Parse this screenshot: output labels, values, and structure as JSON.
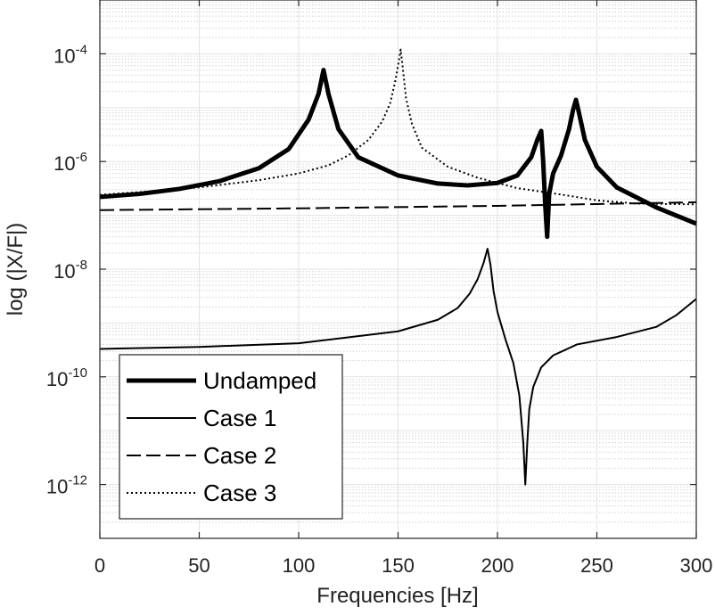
{
  "chart_data": {
    "type": "line",
    "xlabel": "Frequencies [Hz]",
    "ylabel": "log (|X/F|)",
    "xlim": [
      0,
      300
    ],
    "ylim_log10": [
      -13,
      -3
    ],
    "yscale": "log",
    "grid": true,
    "minor_grid": true,
    "legend_position": "bottom-left",
    "xticks": [
      {
        "value": 0,
        "label": "0"
      },
      {
        "value": 50,
        "label": "50"
      },
      {
        "value": 100,
        "label": "100"
      },
      {
        "value": 150,
        "label": "150"
      },
      {
        "value": 200,
        "label": "200"
      },
      {
        "value": 250,
        "label": "250"
      },
      {
        "value": 300,
        "label": "300"
      }
    ],
    "yticks": [
      {
        "exp": -4,
        "base": "10",
        "sup": "-4"
      },
      {
        "exp": -6,
        "base": "10",
        "sup": "-6"
      },
      {
        "exp": -8,
        "base": "10",
        "sup": "-8"
      },
      {
        "exp": -10,
        "base": "10",
        "sup": "-10"
      },
      {
        "exp": -12,
        "base": "10",
        "sup": "-12"
      }
    ],
    "series": [
      {
        "name": "Undamped",
        "style": "thick-solid",
        "x": [
          0,
          20,
          40,
          60,
          80,
          95,
          105,
          110,
          112.5,
          115,
          120,
          130,
          150,
          170,
          185,
          200,
          210,
          217,
          220,
          222,
          223,
          224,
          225,
          226,
          228,
          232,
          236,
          238,
          239.5,
          241,
          244,
          250,
          260,
          280,
          300
        ],
        "y": [
          2.2e-07,
          2.5e-07,
          3.1e-07,
          4.3e-07,
          7.5e-07,
          1.7e-06,
          6e-06,
          1.8e-05,
          5e-05,
          1.8e-05,
          4e-06,
          1.2e-06,
          5.5e-07,
          3.9e-07,
          3.6e-07,
          4e-07,
          5.5e-07,
          1.2e-06,
          2.5e-06,
          3.7e-06,
          1e-06,
          1.6e-07,
          4e-08,
          2.5e-07,
          6e-07,
          1.3e-06,
          4e-06,
          9e-06,
          1.4e-05,
          8e-06,
          2.5e-06,
          8e-07,
          3.3e-07,
          1.4e-07,
          7e-08
        ]
      },
      {
        "name": "Case 1",
        "style": "thin-solid",
        "x": [
          0,
          50,
          100,
          150,
          170,
          180,
          186,
          190,
          193,
          195,
          196.5,
          198,
          200,
          204,
          208,
          211,
          213,
          214,
          215,
          216,
          218,
          222,
          228,
          240,
          260,
          280,
          290,
          300
        ],
        "y": [
          3.3e-10,
          3.6e-10,
          4.2e-10,
          7e-10,
          1.15e-09,
          1.9e-09,
          3.5e-09,
          6.5e-09,
          1.3e-08,
          2.4e-08,
          1.2e-08,
          4e-09,
          1.6e-09,
          5e-10,
          1.8e-10,
          4.5e-11,
          6e-12,
          1e-12,
          6e-12,
          2.5e-11,
          6.5e-11,
          1.5e-10,
          2.5e-10,
          4e-10,
          5.5e-10,
          8.5e-10,
          1.4e-09,
          2.8e-09
        ]
      },
      {
        "name": "Case 2",
        "style": "dashed",
        "x": [
          0,
          100,
          200,
          300
        ],
        "y": [
          1.25e-07,
          1.35e-07,
          1.5e-07,
          1.75e-07
        ]
      },
      {
        "name": "Case 3",
        "style": "dotted",
        "x": [
          0,
          20,
          50,
          80,
          100,
          115,
          125,
          135,
          142,
          146,
          148.5,
          150,
          151.3,
          152.5,
          154,
          157,
          162,
          175,
          190,
          210,
          230,
          250,
          270,
          300
        ],
        "y": [
          2.4e-07,
          2.7e-07,
          3.3e-07,
          4.5e-07,
          6e-07,
          8.5e-07,
          1.3e-06,
          2.5e-06,
          5.5e-06,
          1.2e-05,
          3e-05,
          6e-05,
          0.00012,
          5e-05,
          1.5e-05,
          5e-06,
          1.8e-06,
          8e-07,
          5e-07,
          3.2e-07,
          2.5e-07,
          1.9e-07,
          1.65e-07,
          1.6e-07
        ]
      }
    ]
  }
}
